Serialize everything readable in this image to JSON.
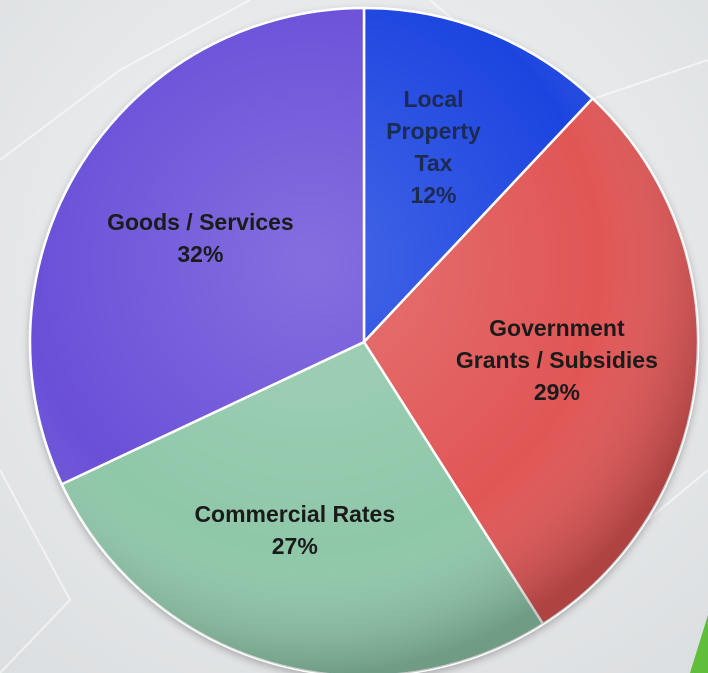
{
  "chart_data": {
    "type": "pie",
    "title": "",
    "slices": [
      {
        "name": "Local Property Tax",
        "label_lines": [
          "Local",
          "Property",
          "Tax"
        ],
        "value": 12,
        "value_label": "12%",
        "color": "#1e45e0",
        "text_color": "#1d2a52"
      },
      {
        "name": "Government Grants / Subsidies",
        "label_lines": [
          "Government",
          "Grants / Subsidies"
        ],
        "value": 29,
        "value_label": "29%",
        "color": "#e05655",
        "text_color": "#1b1b1b"
      },
      {
        "name": "Commercial Rates",
        "label_lines": [
          "Commercial Rates"
        ],
        "value": 27,
        "value_label": "27%",
        "color": "#8fc7a9",
        "text_color": "#1b1b1b"
      },
      {
        "name": "Goods / Services",
        "label_lines": [
          "Goods / Services"
        ],
        "value": 32,
        "value_label": "32%",
        "color": "#6b4fd8",
        "text_color": "#1b1b1b"
      }
    ],
    "start": "12 o'clock",
    "direction": "clockwise",
    "legend": "none"
  }
}
